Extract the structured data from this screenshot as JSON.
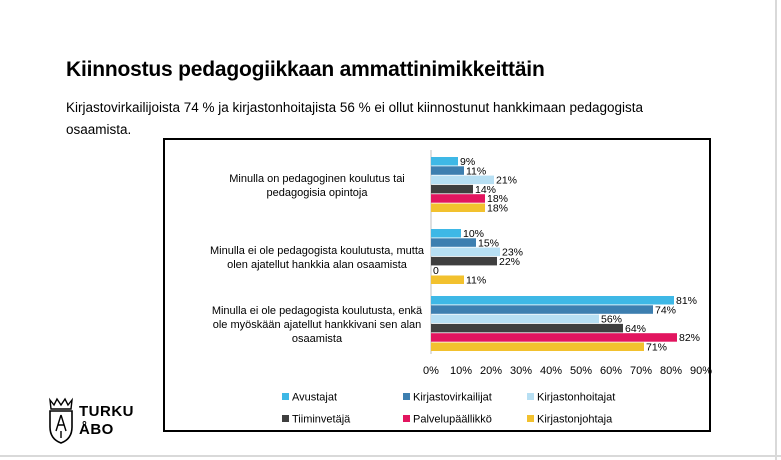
{
  "header": {
    "title": "Kiinnostus pedagogiikkaan ammattinimikkeittäin",
    "subtitle": "Kirjastovirkailijoista 74 % ja kirjastonhoitajista 56 % ei ollut kiinnostunut hankkimaan pedagogista osaamista."
  },
  "logo": {
    "line1": "TURKU",
    "line2": "ÅBO",
    "icon": "turku-coat-of-arms-icon"
  },
  "chart_data": {
    "type": "bar",
    "orientation": "horizontal",
    "categories": [
      [
        "Minulla on pedagoginen koulutus tai",
        "pedagogisia opintoja"
      ],
      [
        "Minulla ei ole pedagogista koulutusta, mutta",
        "olen ajatellut hankkia alan osaamista"
      ],
      [
        "Minulla ei ole pedagogista koulutusta, enkä",
        "ole myöskään ajatellut hankkivani sen alan",
        "osaamista"
      ]
    ],
    "series": [
      {
        "name": "Avustajat",
        "color": "#3eb8e6",
        "values": [
          9,
          10,
          81
        ],
        "labels": [
          "9%",
          "10%",
          "81%"
        ]
      },
      {
        "name": "Kirjastovirkailijat",
        "color": "#3d7fb0",
        "values": [
          11,
          15,
          74
        ],
        "labels": [
          "11%",
          "15%",
          "74%"
        ]
      },
      {
        "name": "Kirjastonhoitajat",
        "color": "#b7dff3",
        "values": [
          21,
          23,
          56
        ],
        "labels": [
          "21%",
          "23%",
          "56%"
        ]
      },
      {
        "name": "Tiiminvetäjä",
        "color": "#3f3f3f",
        "values": [
          14,
          22,
          64
        ],
        "labels": [
          "14%",
          "22%",
          "64%"
        ]
      },
      {
        "name": "Palvelupäällikkö",
        "color": "#e2155f",
        "values": [
          18,
          0,
          82
        ],
        "labels": [
          "18%",
          "0",
          "82%"
        ]
      },
      {
        "name": "Kirjastonjohtaja",
        "color": "#f2c12e",
        "values": [
          18,
          11,
          71
        ],
        "labels": [
          "18%",
          "11%",
          "71%"
        ]
      }
    ],
    "xlim": [
      0,
      90
    ],
    "xticks": [
      0,
      10,
      20,
      30,
      40,
      50,
      60,
      70,
      80,
      90
    ],
    "xtick_labels": [
      "0%",
      "10%",
      "20%",
      "30%",
      "40%",
      "50%",
      "60%",
      "70%",
      "80%",
      "90%"
    ],
    "legend_position": "bottom",
    "grid": false
  }
}
